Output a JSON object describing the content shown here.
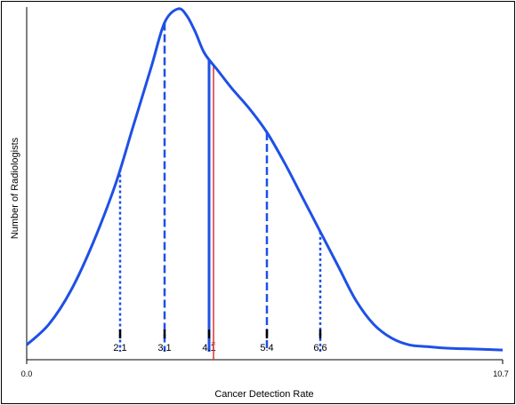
{
  "chart_data": {
    "type": "line",
    "title": "",
    "xlabel": "Cancer Detection Rate",
    "ylabel": "Number of Radiologists",
    "xlim": [
      0.0,
      10.7
    ],
    "x_tick_labels": [
      "0.0",
      "10.7"
    ],
    "y_tick_labels": [],
    "grid": false,
    "legend": "none",
    "series": [
      {
        "x": [
          0.0,
          0.5,
          1.0,
          1.5,
          2.0,
          2.4,
          2.8,
          3.1,
          3.4,
          3.6,
          3.8,
          4.0,
          4.3,
          4.6,
          5.0,
          5.4,
          5.8,
          6.2,
          6.6,
          7.0,
          7.4,
          7.8,
          8.2,
          8.6,
          9.0,
          9.5,
          10.0,
          10.7
        ],
        "y": [
          0.02,
          0.08,
          0.18,
          0.32,
          0.49,
          0.66,
          0.83,
          0.96,
          1.0,
          0.98,
          0.93,
          0.87,
          0.82,
          0.77,
          0.71,
          0.64,
          0.55,
          0.45,
          0.35,
          0.25,
          0.15,
          0.08,
          0.04,
          0.02,
          0.015,
          0.01,
          0.008,
          0.005
        ]
      }
    ],
    "percentile_lines": [
      {
        "x": 2.1,
        "label": "2.1",
        "style": "dotted"
      },
      {
        "x": 3.1,
        "label": "3.1",
        "style": "dashed"
      },
      {
        "x": 4.1,
        "label": "4.1",
        "style": "solid"
      },
      {
        "x": 5.4,
        "label": "5.4",
        "style": "dashed"
      },
      {
        "x": 6.6,
        "label": "6.6",
        "style": "dotted"
      }
    ],
    "reference_line": {
      "x": 4.2,
      "color": "#e03030"
    },
    "colors": {
      "curve": "#1e50e6",
      "reference": "#e03030",
      "axis": "#000000"
    }
  }
}
